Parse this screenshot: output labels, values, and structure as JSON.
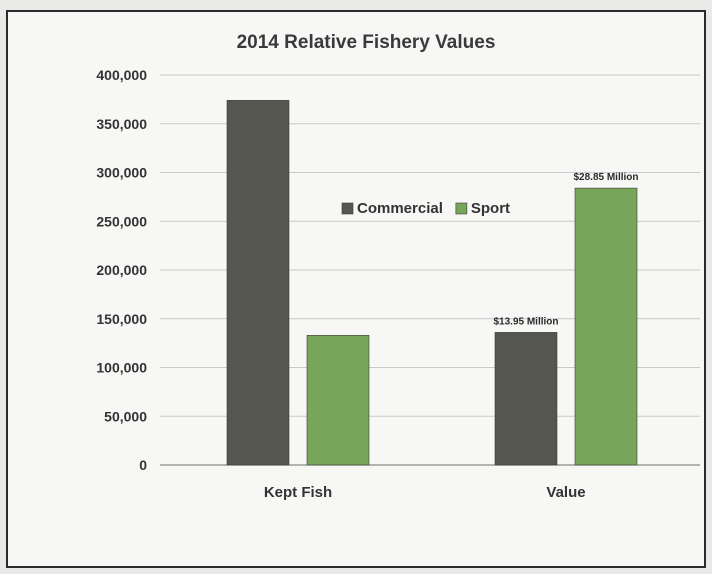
{
  "chart_data": {
    "type": "bar",
    "title": "2014 Relative Fishery Values",
    "xlabel": "",
    "ylabel": "",
    "categories": [
      "Kept Fish",
      "Value"
    ],
    "ylim": [
      0,
      400000
    ],
    "yticks": [
      0,
      50000,
      100000,
      150000,
      200000,
      250000,
      300000,
      350000,
      400000
    ],
    "ytick_labels": [
      "0",
      "50,000",
      "100,000",
      "150,000",
      "200,000",
      "250,000",
      "300,000",
      "350,000",
      "400,000"
    ],
    "series": [
      {
        "name": "Commercial",
        "color": "#565650",
        "values": [
          374000,
          136000
        ]
      },
      {
        "name": "Sport",
        "color": "#77a55a",
        "values": [
          133000,
          284000
        ]
      }
    ],
    "data_labels": [
      [
        "",
        "$13.95 Million"
      ],
      [
        "",
        "$28.85 Million"
      ]
    ],
    "legend": {
      "placement": "center-right",
      "entries": [
        "Commercial",
        "Sport"
      ]
    },
    "grid": true
  }
}
